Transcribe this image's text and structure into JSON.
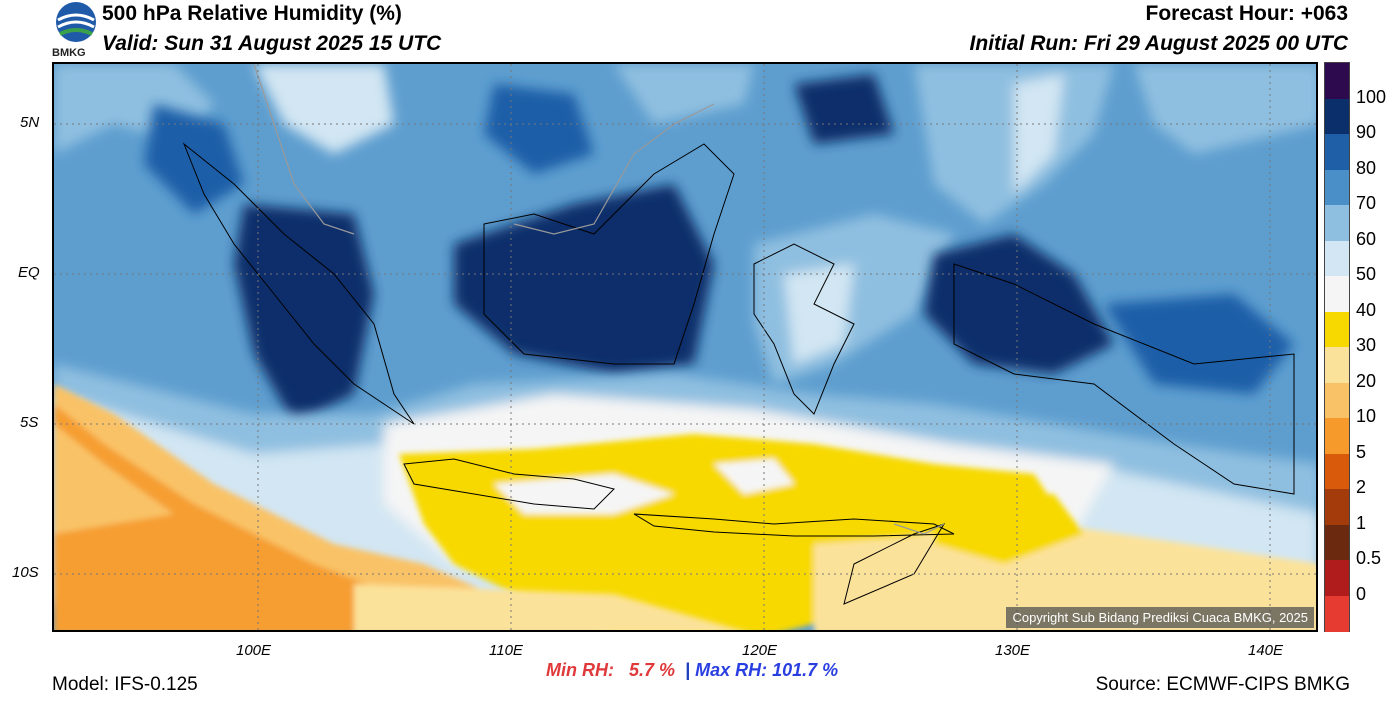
{
  "header": {
    "title": "500 hPa Relative Humidity (%)",
    "valid": "Valid: Sun 31 August 2025 15 UTC",
    "forecast_hour": "Forecast Hour: +063",
    "initial_run": "Initial Run: Fri 29 August 2025 00 UTC",
    "logo_text": "BMKG"
  },
  "map": {
    "lat_labels": [
      "5N",
      "EQ",
      "5S",
      "10S"
    ],
    "lon_labels": [
      "100E",
      "110E",
      "120E",
      "130E",
      "140E"
    ],
    "copyright": "Copyright Sub Bidang Prediksi Cuaca BMKG, 2025"
  },
  "colorbar": {
    "labels": [
      "100",
      "90",
      "80",
      "70",
      "60",
      "50",
      "40",
      "30",
      "20",
      "10",
      "5",
      "2",
      "1",
      "0.5",
      "0"
    ],
    "colors": [
      "#2d0a4e",
      "#0b2f6b",
      "#1f5fa8",
      "#4a8fc8",
      "#8fbfe0",
      "#d2e6f3",
      "#f5f5f5",
      "#f7d900",
      "#fbe29a",
      "#f9c266",
      "#f59a2b",
      "#d95a0a",
      "#a33b0b",
      "#6b2a10",
      "#b01c1c",
      "#e53b30"
    ]
  },
  "stats": {
    "min_label": "Min RH:",
    "min_value": "5.7 %",
    "separator": "|",
    "max_label": "Max RH:",
    "max_value": "101.7 %"
  },
  "footer": {
    "model": "Model: IFS-0.125",
    "source": "Source: ECMWF-CIPS BMKG"
  }
}
